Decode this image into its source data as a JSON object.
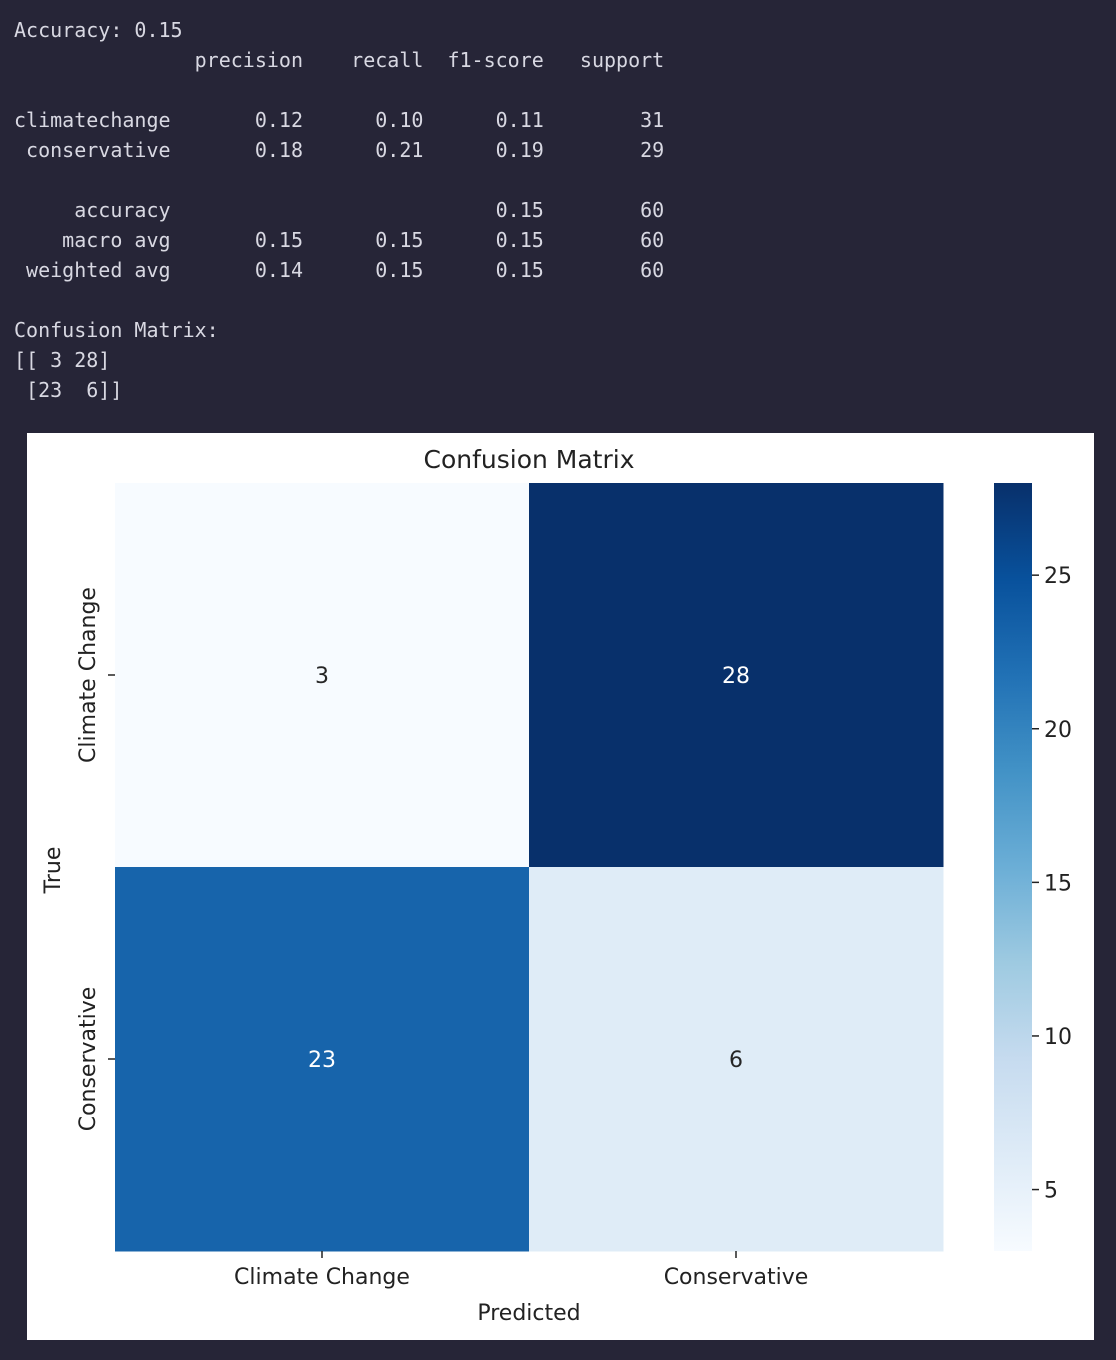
{
  "console": {
    "lines": [
      "Accuracy: 0.15",
      "               precision    recall  f1-score   support",
      "",
      "climatechange       0.12      0.10      0.11        31",
      " conservative       0.18      0.21      0.19        29",
      "",
      "     accuracy                           0.15        60",
      "    macro avg       0.15      0.15      0.15        60",
      " weighted avg       0.14      0.15      0.15        60",
      "",
      "Confusion Matrix:",
      "[[ 3 28]",
      " [23  6]]"
    ]
  },
  "chart_data": {
    "type": "heatmap",
    "title": "Confusion Matrix",
    "xlabel": "Predicted",
    "ylabel": "True",
    "x_categories": [
      "Climate Change",
      "Conservative"
    ],
    "y_categories": [
      "Climate Change",
      "Conservative"
    ],
    "values": [
      [
        3,
        28
      ],
      [
        23,
        6
      ]
    ],
    "colormap": "Blues",
    "colorbar": {
      "range": [
        3,
        28
      ],
      "ticks": [
        5,
        10,
        15,
        20,
        25
      ]
    },
    "annotations": true
  }
}
